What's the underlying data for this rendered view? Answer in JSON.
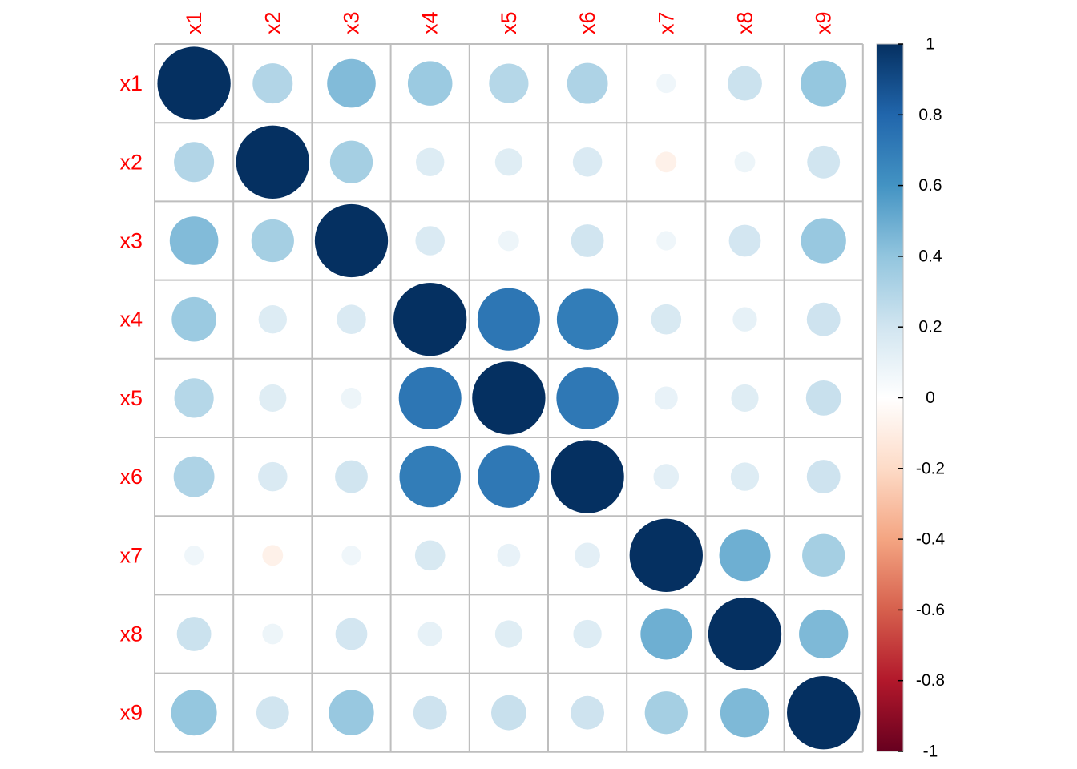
{
  "chart_data": {
    "type": "heatmap",
    "subtype": "correlation-circles",
    "title": "",
    "variables": [
      "x1",
      "x2",
      "x3",
      "x4",
      "x5",
      "x6",
      "x7",
      "x8",
      "x9"
    ],
    "label_color": "#FF0000",
    "matrix": [
      [
        1.0,
        0.3,
        0.44,
        0.37,
        0.29,
        0.31,
        0.07,
        0.22,
        0.39
      ],
      [
        0.3,
        1.0,
        0.34,
        0.15,
        0.14,
        0.16,
        -0.08,
        0.08,
        0.2
      ],
      [
        0.44,
        0.34,
        1.0,
        0.16,
        0.08,
        0.2,
        0.07,
        0.19,
        0.38
      ],
      [
        0.37,
        0.15,
        0.16,
        1.0,
        0.73,
        0.7,
        0.17,
        0.11,
        0.21
      ],
      [
        0.29,
        0.14,
        0.08,
        0.73,
        1.0,
        0.72,
        0.1,
        0.14,
        0.23
      ],
      [
        0.31,
        0.16,
        0.2,
        0.7,
        0.72,
        1.0,
        0.12,
        0.15,
        0.21
      ],
      [
        0.07,
        -0.08,
        0.07,
        0.17,
        0.1,
        0.12,
        1.0,
        0.49,
        0.34
      ],
      [
        0.22,
        0.08,
        0.19,
        0.11,
        0.14,
        0.15,
        0.49,
        1.0,
        0.45
      ],
      [
        0.39,
        0.2,
        0.38,
        0.21,
        0.23,
        0.21,
        0.34,
        0.45,
        1.0
      ]
    ],
    "color_scale": {
      "range": [
        -1,
        1
      ],
      "ticks": [
        "1",
        "0.8",
        "0.6",
        "0.4",
        "0.2",
        "0",
        "-0.2",
        "-0.4",
        "-0.6",
        "-0.8",
        "-1"
      ],
      "stops": [
        "#67001F",
        "#B2182B",
        "#D6604D",
        "#F4A582",
        "#FDDBC7",
        "#FFFFFF",
        "#D1E5F0",
        "#92C5DE",
        "#4393C3",
        "#2166AC",
        "#053061"
      ]
    },
    "grid": true,
    "grid_color": "#BEBEBE",
    "legend_position": "right"
  }
}
